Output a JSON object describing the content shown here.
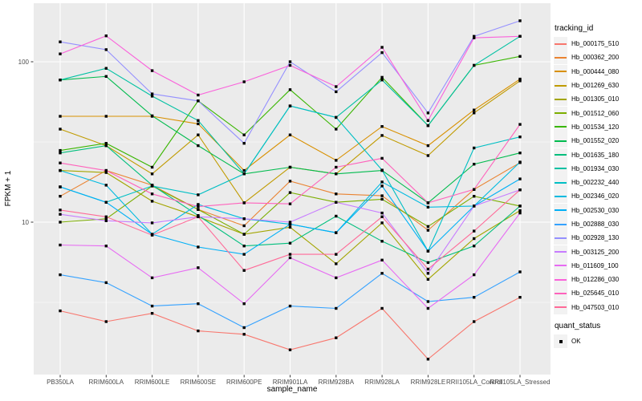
{
  "chart_data": {
    "type": "line",
    "title": "",
    "xlabel": "sample_name",
    "ylabel": "FPKM + 1",
    "y_scale": "log10",
    "ylim": [
      1.12,
      232
    ],
    "y_major_ticks": [
      10,
      100
    ],
    "y_minor_gridlines": [
      3.1623,
      31.623
    ],
    "grid": "on",
    "panel_bg": "#EBEBEB",
    "grid_color": "#FFFFFF",
    "point_shape": "filled-square",
    "point_color": "#000000",
    "legend_position": "right",
    "legend_titles": {
      "color": "tracking_id",
      "shape": "quant_status"
    },
    "quant_status": {
      "label": "OK"
    },
    "x_categories": [
      "PB350LA",
      "RRIM600LA",
      "RRIM600LE",
      "RRIM600SE",
      "RRIM600PE",
      "RRIM901LA",
      "RRIM928BA",
      "RRIM928LA",
      "RRIM928LE",
      "RRII105LA_Control",
      "RRII105LA_Stressed"
    ],
    "series": [
      {
        "name": "Hb_000175_510",
        "color": "#F8766D",
        "values": [
          2.8,
          2.4,
          2.7,
          2.1,
          2.0,
          1.6,
          1.9,
          2.9,
          1.4,
          2.4,
          3.4
        ]
      },
      {
        "name": "Hb_000362_200",
        "color": "#EA8331",
        "values": [
          14.5,
          21.0,
          17.0,
          12.0,
          9.5,
          18.0,
          15.0,
          14.6,
          8.9,
          16.0,
          23.5
        ]
      },
      {
        "name": "Hb_000444_080",
        "color": "#D89000",
        "values": [
          45.7,
          45.7,
          45.7,
          41.0,
          21.0,
          35.0,
          24.3,
          39.5,
          30.0,
          50.0,
          78.0
        ]
      },
      {
        "name": "Hb_001269_630",
        "color": "#C09B00",
        "values": [
          38.0,
          30.0,
          20.0,
          35.0,
          13.2,
          22.0,
          20.0,
          34.7,
          26.0,
          48.0,
          76.0
        ]
      },
      {
        "name": "Hb_001305_010",
        "color": "#A3A500",
        "values": [
          21.0,
          20.4,
          13.5,
          10.8,
          8.4,
          9.3,
          5.5,
          9.9,
          4.4,
          7.9,
          11.8
        ]
      },
      {
        "name": "Hb_001512_060",
        "color": "#7CAE00",
        "values": [
          10.0,
          10.5,
          16.8,
          12.0,
          8.4,
          15.3,
          13.3,
          13.9,
          9.4,
          14.5,
          12.6
        ]
      },
      {
        "name": "Hb_001534_120",
        "color": "#39B600",
        "values": [
          28.0,
          31.0,
          22.0,
          57.0,
          35.0,
          67.0,
          38.0,
          80.0,
          40.0,
          95.0,
          108.0
        ]
      },
      {
        "name": "Hb_001552_020",
        "color": "#00BB4E",
        "values": [
          77.0,
          81.0,
          46.0,
          30.0,
          20.0,
          22.0,
          20.0,
          21.0,
          13.2,
          23.0,
          27.0
        ]
      },
      {
        "name": "Hb_001635_180",
        "color": "#00BF7D",
        "values": [
          27.0,
          30.0,
          17.0,
          11.0,
          7.1,
          7.4,
          10.9,
          7.6,
          5.6,
          7.1,
          12.6
        ]
      },
      {
        "name": "Hb_001934_030",
        "color": "#00C1A3",
        "values": [
          77.0,
          91.0,
          61.0,
          43.0,
          20.0,
          53.0,
          45.0,
          77.0,
          40.0,
          95.0,
          144.0
        ]
      },
      {
        "name": "Hb_002232_440",
        "color": "#00BFC4",
        "values": [
          16.6,
          13.3,
          16.8,
          14.8,
          20.0,
          53.0,
          45.0,
          21.1,
          6.6,
          29.0,
          34.0
        ]
      },
      {
        "name": "Hb_002346_020",
        "color": "#00BAE0",
        "values": [
          21.0,
          17.0,
          8.4,
          12.9,
          10.5,
          9.7,
          8.6,
          17.8,
          12.4,
          12.6,
          23.7
        ]
      },
      {
        "name": "Hb_002530_030",
        "color": "#00B0F6",
        "values": [
          16.6,
          13.3,
          8.4,
          7.0,
          6.3,
          9.7,
          8.6,
          16.8,
          6.6,
          12.6,
          18.6
        ]
      },
      {
        "name": "Hb_002888_030",
        "color": "#35A2FF",
        "values": [
          4.7,
          4.2,
          3.0,
          3.1,
          2.2,
          3.0,
          2.9,
          4.8,
          3.2,
          3.4,
          4.9
        ]
      },
      {
        "name": "Hb_002928_130",
        "color": "#9590FF",
        "values": [
          133,
          119,
          63,
          57,
          31,
          100,
          65,
          114,
          48,
          144,
          180
        ]
      },
      {
        "name": "Hb_003125_200",
        "color": "#C77CFF",
        "values": [
          11.2,
          10.2,
          9.9,
          10.8,
          10.5,
          10.0,
          13.3,
          11.4,
          4.8,
          12.6,
          15.9
        ]
      },
      {
        "name": "Hb_011609_100",
        "color": "#E76BF3",
        "values": [
          7.2,
          7.1,
          4.5,
          5.2,
          3.1,
          6.0,
          4.5,
          5.8,
          2.9,
          4.7,
          11.4
        ]
      },
      {
        "name": "Hb_012286_030",
        "color": "#FA62DB",
        "values": [
          112,
          145,
          88,
          62,
          75,
          95,
          70,
          123,
          43,
          141,
          144
        ]
      },
      {
        "name": "Hb_025645_010",
        "color": "#FF62BC",
        "values": [
          23.4,
          21.0,
          15.0,
          12.5,
          13.2,
          13.0,
          22.0,
          25.0,
          13.2,
          16.0,
          40.7
        ]
      },
      {
        "name": "Hb_047503_010",
        "color": "#FF6A98",
        "values": [
          11.9,
          10.8,
          8.3,
          10.8,
          5.0,
          6.3,
          6.3,
          10.8,
          5.1,
          8.8,
          15.9
        ]
      }
    ]
  }
}
